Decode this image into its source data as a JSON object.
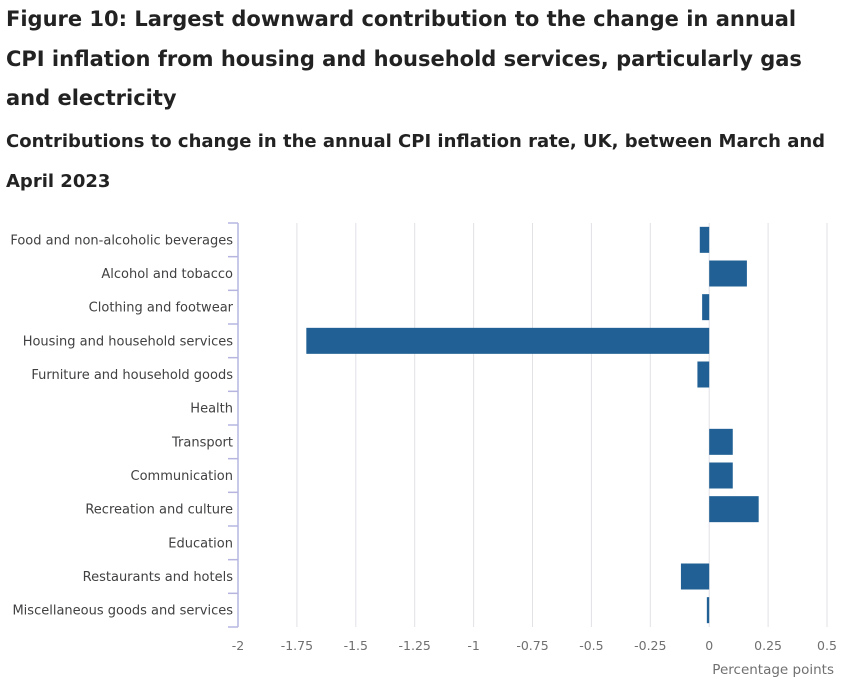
{
  "figure_title": "Figure 10: Largest downward contribution to the change in annual CPI inflation from housing and household services, particularly gas and electricity",
  "colors": {
    "bar": "#206095",
    "grid": "#e1e1e6",
    "axis": "#b5b5e0"
  },
  "chart_data": {
    "type": "bar",
    "orientation": "horizontal",
    "title": "Contributions to change in the annual CPI inflation rate, UK, between March and April 2023",
    "xlabel": "Percentage points",
    "ylabel": "",
    "xlim": [
      -2,
      0.5
    ],
    "xticks": [
      -2,
      -1.75,
      -1.5,
      -1.25,
      -1,
      -0.75,
      -0.5,
      -0.25,
      0,
      0.25,
      0.5
    ],
    "xtick_labels": [
      "-2",
      "-1.75",
      "-1.5",
      "-1.25",
      "-1",
      "-0.75",
      "-0.5",
      "-0.25",
      "0",
      "0.25",
      "0.5"
    ],
    "grid": true,
    "categories": [
      "Food and non-alcoholic beverages",
      "Alcohol and tobacco",
      "Clothing and footwear",
      "Housing and household services",
      "Furniture and household goods",
      "Health",
      "Transport",
      "Communication",
      "Recreation and culture",
      "Education",
      "Restaurants and hotels",
      "Miscellaneous goods and services"
    ],
    "values": [
      -0.04,
      0.16,
      -0.03,
      -1.71,
      -0.05,
      0.0,
      0.1,
      0.1,
      0.21,
      0.0,
      -0.12,
      -0.01
    ]
  }
}
